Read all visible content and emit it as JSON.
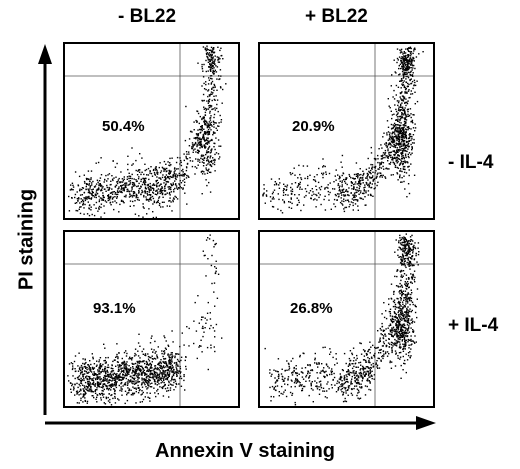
{
  "chart_data": {
    "type": "scatter",
    "xlabel": "Annexin V staining",
    "ylabel": "PI staining",
    "columns": [
      "- BL22",
      "+ BL22"
    ],
    "rows": [
      "- IL-4",
      "+ IL-4"
    ],
    "panels": [
      {
        "column": "- BL22",
        "row": "- IL-4",
        "live_percent_label": "50.4%",
        "live_fraction": 0.504
      },
      {
        "column": "+ BL22",
        "row": "- IL-4",
        "live_percent_label": "20.9%",
        "live_fraction": 0.209
      },
      {
        "column": "- BL22",
        "row": "+ IL-4",
        "live_percent_label": "93.1%",
        "live_fraction": 0.931
      },
      {
        "column": "+ BL22",
        "row": "+ IL-4",
        "live_percent_label": "26.8%",
        "live_fraction": 0.268
      }
    ],
    "quadrant_gates": true,
    "grid": false
  }
}
